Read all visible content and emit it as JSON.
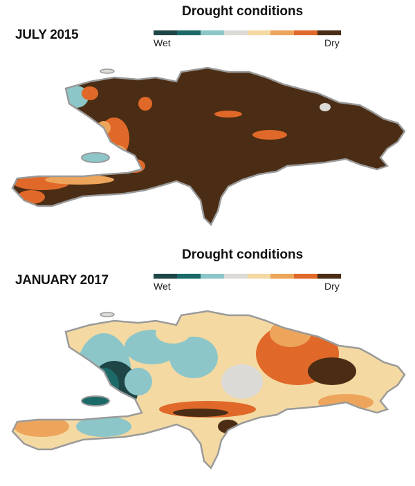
{
  "panels": [
    {
      "title": "JULY 2015",
      "legend_title": "Drought conditions",
      "legend_min": "Wet",
      "legend_max": "Dry"
    },
    {
      "title": "JANUARY 2017",
      "legend_title": "Drought conditions",
      "legend_min": "Wet",
      "legend_max": "Dry"
    }
  ],
  "legend_colors": [
    "#1f4646",
    "#1b6a68",
    "#8cc6c8",
    "#dcdad6",
    "#f4d9a2",
    "#eda55c",
    "#e0692a",
    "#4a2d14"
  ]
}
